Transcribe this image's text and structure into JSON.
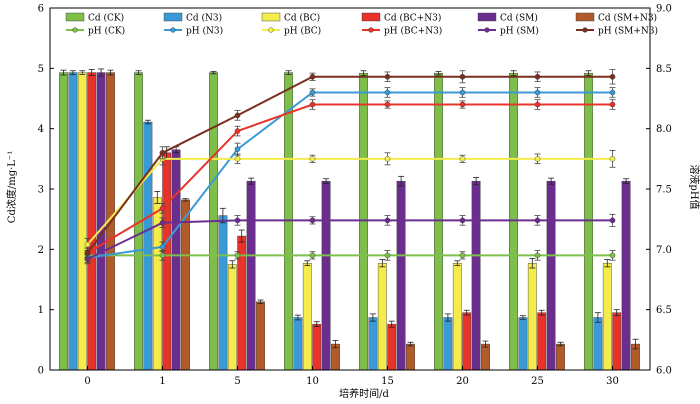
{
  "chart_data": {
    "type": "bar",
    "categories": [
      "0",
      "1",
      "5",
      "10",
      "15",
      "20",
      "25",
      "30"
    ],
    "xlabel": "培养时间/d",
    "ylabel": "Cd浓度/mg·L⁻¹",
    "y2label": "溶液pH值",
    "ylim": [
      0,
      6
    ],
    "y2lim": [
      6.0,
      9.0
    ],
    "yticks": [
      "0",
      "1",
      "2",
      "3",
      "4",
      "5",
      "6"
    ],
    "y2ticks": [
      "6.0",
      "6.5",
      "7.0",
      "7.5",
      "8.0",
      "8.5",
      "9.0"
    ],
    "grid": false,
    "legend_position": "top",
    "bar_series": [
      {
        "name": "Cd (CK)",
        "color": "#7dbf4a",
        "values": [
          4.93,
          4.93,
          4.93,
          4.93,
          4.92,
          4.92,
          4.92,
          4.92
        ],
        "errors": [
          0.04,
          0.03,
          0.02,
          0.03,
          0.04,
          0.03,
          0.04,
          0.04
        ]
      },
      {
        "name": "Cd (N3)",
        "color": "#3a9ad6",
        "values": [
          4.93,
          4.11,
          2.56,
          0.87,
          0.87,
          0.87,
          0.87,
          0.87
        ],
        "errors": [
          0.03,
          0.03,
          0.12,
          0.04,
          0.06,
          0.06,
          0.03,
          0.08
        ]
      },
      {
        "name": "Cd (BC)",
        "color": "#f3ec4b",
        "values": [
          4.93,
          2.86,
          1.75,
          1.77,
          1.77,
          1.77,
          1.77,
          1.77
        ],
        "errors": [
          0.03,
          0.1,
          0.06,
          0.04,
          0.06,
          0.04,
          0.08,
          0.06
        ]
      },
      {
        "name": "Cd (BC+N3)",
        "color": "#e8332b",
        "values": [
          4.93,
          3.6,
          2.22,
          0.76,
          0.76,
          0.95,
          0.95,
          0.95
        ],
        "errors": [
          0.05,
          0.1,
          0.1,
          0.04,
          0.05,
          0.04,
          0.04,
          0.05
        ]
      },
      {
        "name": "Cd (SM)",
        "color": "#6b2e8f",
        "values": [
          4.93,
          3.65,
          3.13,
          3.13,
          3.13,
          3.13,
          3.13,
          3.13
        ],
        "errors": [
          0.06,
          0.05,
          0.05,
          0.04,
          0.08,
          0.06,
          0.05,
          0.04
        ]
      },
      {
        "name": "Cd (SM+N3)",
        "color": "#b15a2a",
        "values": [
          4.93,
          2.82,
          1.13,
          0.43,
          0.43,
          0.43,
          0.43,
          0.43
        ],
        "errors": [
          0.04,
          0.02,
          0.03,
          0.06,
          0.03,
          0.05,
          0.03,
          0.08
        ]
      }
    ],
    "line_series": [
      {
        "name": "pH (CK)",
        "color": "#7dbf4a",
        "values": [
          6.95,
          6.95,
          6.95,
          6.95,
          6.95,
          6.95,
          6.95,
          6.95
        ],
        "errors": [
          0.04,
          0.04,
          0.03,
          0.03,
          0.04,
          0.03,
          0.04,
          0.04
        ]
      },
      {
        "name": "pH (N3)",
        "color": "#3a9ad6",
        "values": [
          6.93,
          7.02,
          7.83,
          8.3,
          8.3,
          8.3,
          8.3,
          8.3
        ],
        "errors": [
          0.04,
          0.04,
          0.05,
          0.03,
          0.04,
          0.04,
          0.04,
          0.04
        ]
      },
      {
        "name": "pH (BC)",
        "color": "#f3ec4b",
        "values": [
          7.04,
          7.75,
          7.75,
          7.75,
          7.75,
          7.75,
          7.75,
          7.75
        ],
        "errors": [
          0.05,
          0.05,
          0.04,
          0.03,
          0.05,
          0.03,
          0.04,
          0.07
        ]
      },
      {
        "name": "pH (BC+N3)",
        "color": "#e8332b",
        "values": [
          6.97,
          7.34,
          7.98,
          8.2,
          8.2,
          8.2,
          8.2,
          8.2
        ],
        "errors": [
          0.04,
          0.04,
          0.04,
          0.04,
          0.03,
          0.03,
          0.04,
          0.04
        ]
      },
      {
        "name": "pH (SM)",
        "color": "#6b2e8f",
        "values": [
          6.92,
          7.22,
          7.24,
          7.24,
          7.24,
          7.24,
          7.24,
          7.24
        ],
        "errors": [
          0.04,
          0.04,
          0.04,
          0.03,
          0.04,
          0.04,
          0.04,
          0.05
        ]
      },
      {
        "name": "pH (SM+N3)",
        "color": "#7a2e1e",
        "values": [
          6.97,
          7.8,
          8.11,
          8.43,
          8.43,
          8.43,
          8.43,
          8.43
        ],
        "errors": [
          0.04,
          0.05,
          0.04,
          0.03,
          0.04,
          0.05,
          0.04,
          0.06
        ]
      }
    ]
  }
}
